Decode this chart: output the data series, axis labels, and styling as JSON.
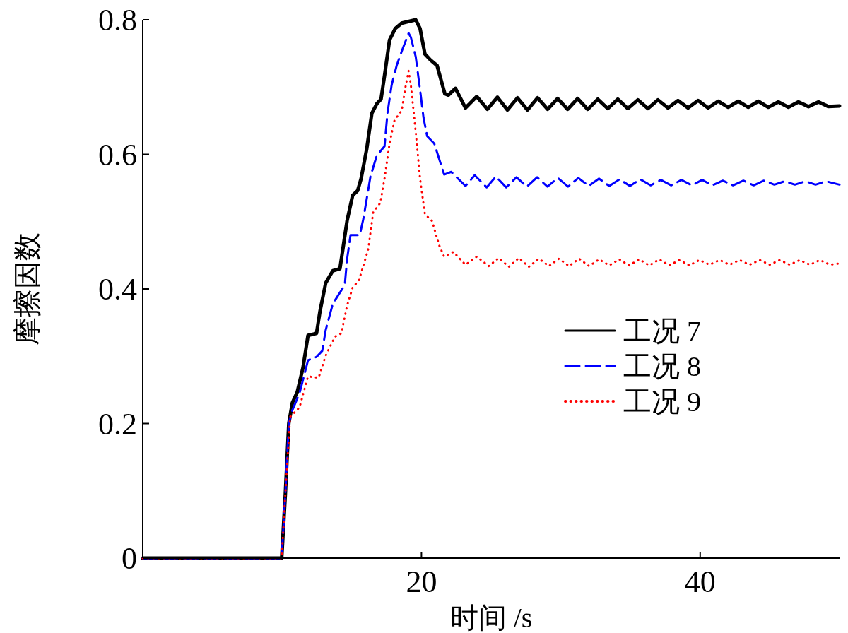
{
  "chart_data": {
    "type": "line",
    "xlabel": "时间 /s",
    "ylabel": "摩擦因数",
    "xlim": [
      0,
      50
    ],
    "ylim": [
      0,
      0.8
    ],
    "xticks": [
      20,
      40
    ],
    "yticks": [
      0,
      0.2,
      0.4,
      0.6,
      0.8
    ],
    "grid": false,
    "legend": "right",
    "series": [
      {
        "name": "工况 7",
        "color": "#000000",
        "line_style": "solid",
        "x": [
          0,
          9.97,
          10.23,
          10.48,
          10.74,
          11.09,
          11.5,
          11.86,
          12.47,
          12.72,
          13.13,
          13.64,
          14.15,
          14.66,
          15.06,
          15.42,
          15.67,
          16.08,
          16.44,
          16.79,
          17.1,
          17.35,
          17.71,
          18.12,
          18.58,
          19.59,
          19.9,
          20.25,
          20.66,
          21.12,
          21.68,
          21.93,
          22.44,
          23.16,
          23.97,
          24.73,
          25.45,
          26.17,
          26.89,
          27.61,
          28.33,
          29.05,
          29.77,
          30.49,
          31.21,
          31.93,
          32.65,
          33.37,
          34.09,
          34.81,
          35.53,
          36.25,
          36.97,
          37.69,
          38.41,
          39.13,
          39.85,
          40.57,
          41.29,
          42.01,
          42.73,
          43.45,
          44.17,
          44.89,
          45.61,
          46.33,
          47.05,
          47.77,
          48.49,
          49.21,
          50
        ],
        "values": [
          0,
          0,
          0.094,
          0.2,
          0.231,
          0.247,
          0.283,
          0.331,
          0.334,
          0.367,
          0.409,
          0.427,
          0.43,
          0.501,
          0.539,
          0.546,
          0.564,
          0.609,
          0.661,
          0.675,
          0.682,
          0.717,
          0.77,
          0.787,
          0.795,
          0.8,
          0.787,
          0.749,
          0.74,
          0.732,
          0.69,
          0.688,
          0.698,
          0.669,
          0.686,
          0.667,
          0.685,
          0.666,
          0.684,
          0.666,
          0.684,
          0.667,
          0.683,
          0.667,
          0.683,
          0.667,
          0.682,
          0.668,
          0.682,
          0.668,
          0.681,
          0.668,
          0.681,
          0.669,
          0.68,
          0.669,
          0.68,
          0.669,
          0.679,
          0.67,
          0.679,
          0.67,
          0.679,
          0.67,
          0.678,
          0.67,
          0.678,
          0.671,
          0.678,
          0.671,
          0.672
        ]
      },
      {
        "name": "工况 8",
        "color": "#0000ff",
        "line_style": "dashed",
        "x": [
          0,
          9.97,
          10.23,
          10.48,
          10.74,
          11.25,
          11.86,
          12.47,
          12.88,
          13.13,
          13.64,
          14.5,
          14.66,
          14.91,
          15.57,
          15.83,
          16.34,
          16.79,
          17.35,
          17.56,
          17.86,
          18.22,
          18.58,
          19.08,
          19.24,
          19.59,
          19.9,
          20.15,
          20.41,
          20.92,
          21.63,
          22.14,
          23.16,
          23.82,
          24.68,
          25.34,
          26.08,
          26.82,
          27.56,
          28.3,
          29.04,
          29.78,
          30.52,
          31.26,
          32.0,
          32.74,
          33.48,
          34.22,
          34.96,
          35.7,
          36.44,
          37.18,
          37.92,
          38.66,
          39.4,
          40.14,
          40.88,
          41.62,
          42.36,
          43.1,
          43.84,
          44.58,
          45.32,
          46.06,
          46.8,
          47.54,
          48.28,
          49.02,
          50
        ],
        "values": [
          0,
          0,
          0.094,
          0.2,
          0.22,
          0.245,
          0.294,
          0.299,
          0.308,
          0.339,
          0.378,
          0.406,
          0.444,
          0.48,
          0.48,
          0.504,
          0.567,
          0.598,
          0.612,
          0.661,
          0.703,
          0.732,
          0.753,
          0.78,
          0.774,
          0.745,
          0.696,
          0.654,
          0.627,
          0.616,
          0.57,
          0.574,
          0.553,
          0.569,
          0.551,
          0.567,
          0.551,
          0.566,
          0.552,
          0.566,
          0.552,
          0.565,
          0.552,
          0.565,
          0.553,
          0.564,
          0.553,
          0.563,
          0.553,
          0.563,
          0.554,
          0.562,
          0.554,
          0.562,
          0.554,
          0.562,
          0.554,
          0.561,
          0.554,
          0.561,
          0.554,
          0.561,
          0.555,
          0.56,
          0.555,
          0.56,
          0.555,
          0.56,
          0.555
        ]
      },
      {
        "name": "工况 9",
        "color": "#ff0000",
        "line_style": "dotted",
        "x": [
          0,
          9.97,
          10.23,
          10.58,
          11.25,
          11.86,
          12.62,
          13.13,
          13.79,
          14.25,
          14.66,
          15.06,
          15.52,
          16.18,
          16.54,
          17.05,
          17.35,
          17.71,
          18.07,
          18.58,
          18.88,
          19.08,
          19.24,
          19.59,
          19.9,
          20.25,
          20.76,
          21.27,
          21.63,
          22.29,
          23.16,
          23.97,
          24.83,
          25.55,
          26.27,
          26.99,
          27.71,
          28.43,
          29.15,
          29.87,
          30.59,
          31.31,
          32.03,
          32.75,
          33.47,
          34.19,
          34.91,
          35.63,
          36.35,
          37.07,
          37.79,
          38.51,
          39.23,
          39.95,
          40.67,
          41.39,
          42.11,
          42.83,
          43.55,
          44.27,
          44.99,
          45.71,
          46.43,
          47.15,
          47.87,
          48.59,
          49.31,
          50
        ],
        "values": [
          0,
          0,
          0.094,
          0.21,
          0.224,
          0.27,
          0.268,
          0.301,
          0.329,
          0.334,
          0.375,
          0.402,
          0.413,
          0.459,
          0.514,
          0.528,
          0.564,
          0.616,
          0.651,
          0.665,
          0.703,
          0.724,
          0.703,
          0.633,
          0.564,
          0.511,
          0.501,
          0.465,
          0.448,
          0.455,
          0.436,
          0.448,
          0.434,
          0.446,
          0.433,
          0.446,
          0.433,
          0.445,
          0.434,
          0.445,
          0.434,
          0.445,
          0.434,
          0.444,
          0.435,
          0.444,
          0.435,
          0.444,
          0.435,
          0.444,
          0.435,
          0.443,
          0.435,
          0.443,
          0.436,
          0.443,
          0.436,
          0.443,
          0.436,
          0.443,
          0.436,
          0.443,
          0.436,
          0.443,
          0.436,
          0.443,
          0.436,
          0.438
        ]
      }
    ]
  }
}
